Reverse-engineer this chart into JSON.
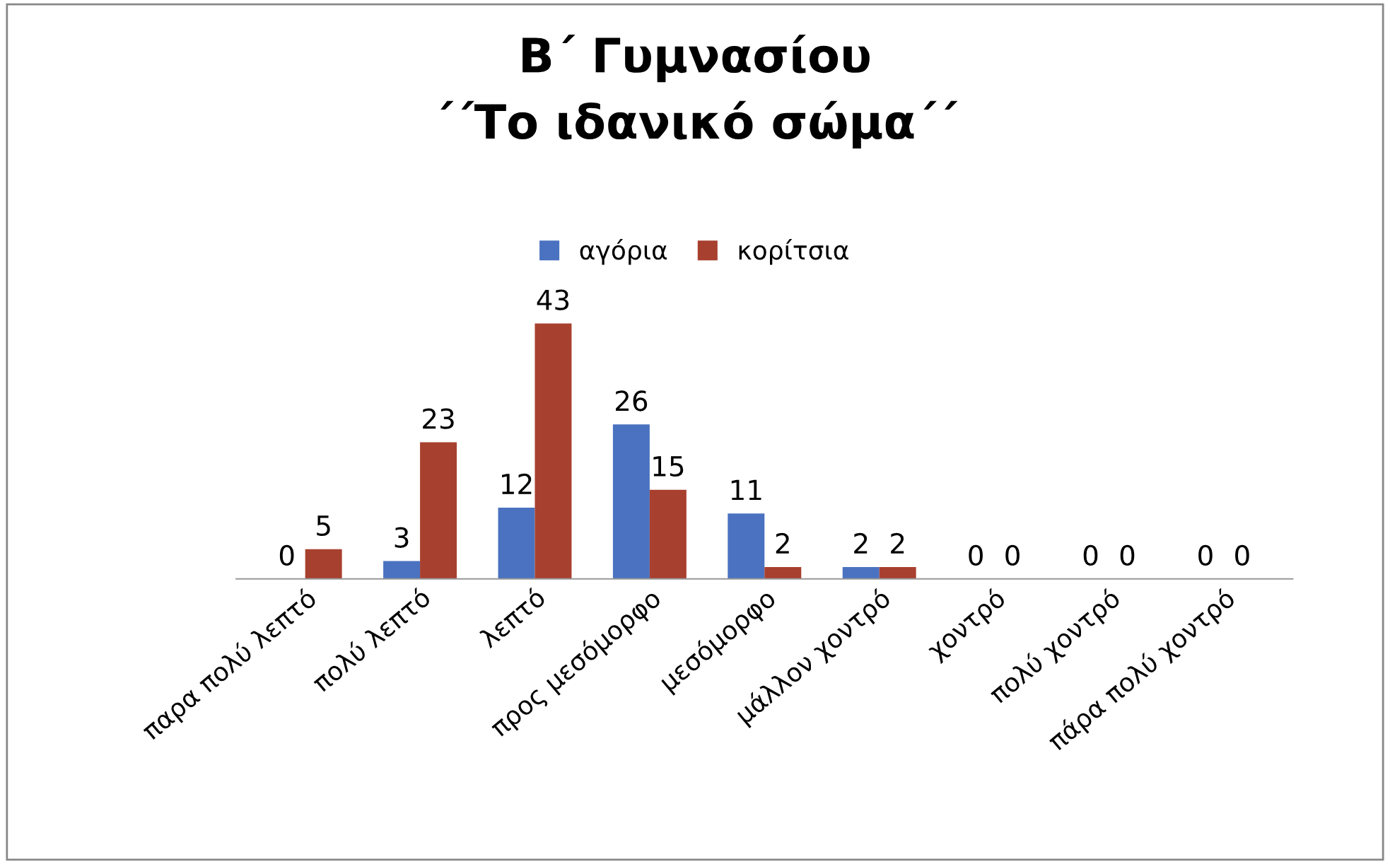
{
  "chart_data": {
    "type": "bar",
    "title": "Β΄ Γυμνασίου\n΄΄Το ιδανικό σώμα΄΄",
    "categories": [
      "παρα πολύ λεπτό",
      "πολύ λεπτό",
      "λεπτό",
      "προς μεσόμορφο",
      "μεσόμορφο",
      "μάλλον χοντρό",
      "χοντρό",
      "πολύ χοντρό",
      "πάρα πολύ χοντρό"
    ],
    "series": [
      {
        "name": "αγόρια",
        "color": "#4a72c0",
        "values": [
          0,
          3,
          12,
          26,
          11,
          2,
          0,
          0,
          0
        ]
      },
      {
        "name": "κορίτσια",
        "color": "#a8402f",
        "values": [
          5,
          23,
          43,
          15,
          2,
          2,
          0,
          0,
          0
        ]
      }
    ],
    "data_labels": true,
    "legend": "top",
    "grid": false,
    "tick_labels": "x"
  }
}
